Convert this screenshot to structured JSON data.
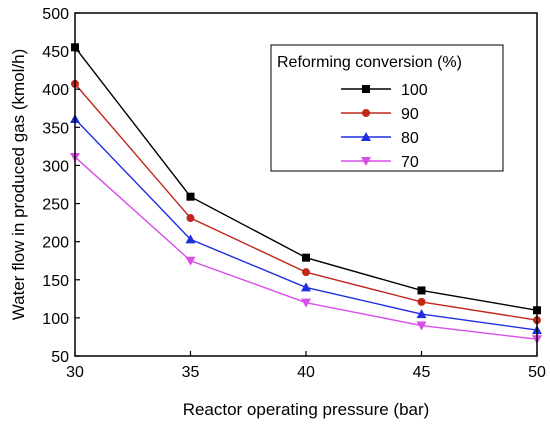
{
  "chart_data": {
    "type": "line",
    "title": "",
    "xlabel": "Reactor operating pressure (bar)",
    "ylabel": "Water flow in produced gas (kmol/h)",
    "xlim": [
      30,
      50
    ],
    "ylim": [
      50,
      500
    ],
    "xticks": [
      30,
      35,
      40,
      45,
      50
    ],
    "yticks": [
      50,
      100,
      150,
      200,
      250,
      300,
      350,
      400,
      450,
      500
    ],
    "grid": false,
    "legend": {
      "title": "Reforming conversion (%)",
      "position": "top-right"
    },
    "x": [
      30,
      35,
      40,
      45,
      50
    ],
    "series": [
      {
        "name": "100",
        "color": "#000000",
        "marker": "square",
        "values": [
          455,
          259,
          179,
          136,
          110
        ]
      },
      {
        "name": "90",
        "color": "#c0281b",
        "marker": "circle",
        "values": [
          407,
          231,
          160,
          121,
          97
        ]
      },
      {
        "name": "80",
        "color": "#1f2fe0",
        "marker": "triangle-up",
        "values": [
          361,
          203,
          140,
          105,
          84
        ]
      },
      {
        "name": "70",
        "color": "#d94ee8",
        "marker": "triangle-down",
        "values": [
          311,
          175,
          120,
          90,
          72
        ]
      }
    ]
  }
}
